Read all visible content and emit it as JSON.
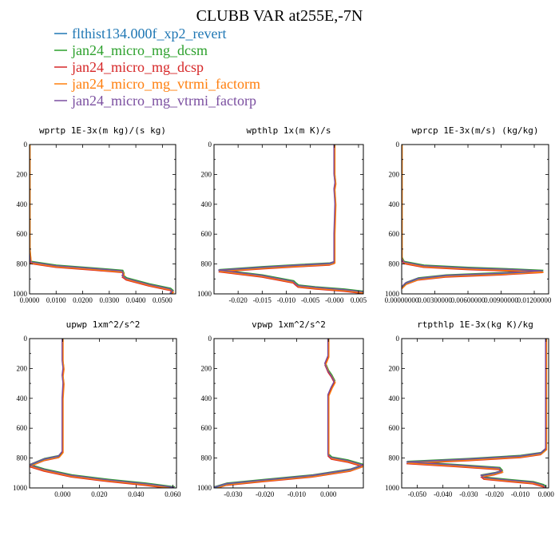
{
  "figure": {
    "title": "CLUBB VAR at255E,-7N"
  },
  "colors": {
    "background": "#ffffff",
    "axis": "#000000"
  },
  "legend": [
    {
      "label": "flthist134.000f_xp2_revert",
      "color": "#1f77b4"
    },
    {
      "label": "jan24_micro_mg_dcsm",
      "color": "#2ca02c"
    },
    {
      "label": "jan24_micro_mg_dcsp",
      "color": "#d62728"
    },
    {
      "label": "jan24_micro_mg_vtrmi_factorm",
      "color": "#ff7f0e"
    },
    {
      "label": "jan24_micro_mg_vtrmi_factorp",
      "color": "#7b4fa0"
    }
  ],
  "chart_data": [
    {
      "type": "line",
      "title": "wprtp 1E-3x(m kg)/(s kg)",
      "xlim": [
        0,
        0.055
      ],
      "ylim": [
        0,
        1000
      ],
      "y_reversed": true,
      "xticks": [
        0,
        0.01,
        0.02,
        0.03,
        0.04,
        0.05
      ],
      "xtick_labels": [
        "0.0000",
        "0.0100",
        "0.0200",
        "0.0300",
        "0.0400",
        "0.0500"
      ],
      "yticks": [
        0,
        200,
        400,
        600,
        800,
        1000
      ],
      "ytick_labels": [
        "0",
        "200",
        "400",
        "600",
        "800",
        "1000"
      ],
      "series": [
        {
          "x": [
            0,
            0,
            0,
            0.0005,
            0.01,
            0.025,
            0.035,
            0.0355,
            0.035,
            0.0365,
            0.045,
            0.053,
            0.054,
            0.053
          ],
          "y": [
            0,
            300,
            700,
            790,
            815,
            835,
            850,
            870,
            880,
            900,
            940,
            970,
            985,
            1000
          ]
        }
      ]
    },
    {
      "type": "line",
      "title": "wpthlp 1x(m K)/s",
      "xlim": [
        -0.025,
        0.006
      ],
      "ylim": [
        0,
        1000
      ],
      "y_reversed": true,
      "xticks": [
        -0.02,
        -0.015,
        -0.01,
        -0.005,
        0
      ],
      "xtick_labels": [
        "-0.020",
        "-0.015",
        "-0.010",
        "-0.005",
        "-0.000"
      ],
      "extra_xtick_labels": [
        {
          "value": 0.005,
          "label": "0.005"
        }
      ],
      "yticks": [
        0,
        200,
        400,
        600,
        800,
        1000
      ],
      "ytick_labels": [
        "0",
        "200",
        "400",
        "600",
        "800",
        "1000"
      ],
      "series": [
        {
          "x": [
            0,
            0,
            0.0002,
            0,
            0.0002,
            0,
            0,
            -0.001,
            -0.007,
            -0.015,
            -0.024,
            -0.015,
            -0.0085,
            -0.008,
            -0.0075,
            -0.004,
            0.002,
            0.006
          ],
          "y": [
            0,
            200,
            260,
            300,
            400,
            600,
            790,
            800,
            810,
            825,
            845,
            880,
            920,
            935,
            948,
            960,
            975,
            990
          ]
        }
      ]
    },
    {
      "type": "line",
      "title": "wprcp 1E-3x(m/s) (kg/kg)",
      "xlim": [
        0,
        0.0133
      ],
      "ylim": [
        0,
        1000
      ],
      "y_reversed": true,
      "xticks": [
        0,
        0.003,
        0.006,
        0.009,
        0.012
      ],
      "xtick_labels": [
        "0.00000000",
        "0.00300000",
        "0.00600000",
        "0.00900000",
        "0.01200000"
      ],
      "yticks": [
        0,
        200,
        400,
        600,
        800,
        1000
      ],
      "ytick_labels": [
        "0",
        "200",
        "400",
        "600",
        "800",
        "1000"
      ],
      "series": [
        {
          "x": [
            0,
            0,
            0.0002,
            0.002,
            0.006,
            0.01,
            0.0128,
            0.009,
            0.004,
            0.0015,
            0.0004,
            0
          ],
          "y": [
            0,
            760,
            790,
            815,
            830,
            840,
            850,
            865,
            880,
            900,
            930,
            960
          ]
        }
      ]
    },
    {
      "type": "line",
      "title": "upwp 1xm^2/s^2",
      "xlim": [
        -0.018,
        0.062
      ],
      "ylim": [
        0,
        1000
      ],
      "y_reversed": true,
      "xticks": [
        0,
        0.02,
        0.04,
        0.06
      ],
      "xtick_labels": [
        "0.000",
        "0.020",
        "0.040",
        "0.060"
      ],
      "yticks": [
        0,
        200,
        400,
        600,
        800,
        1000
      ],
      "ytick_labels": [
        "0",
        "200",
        "400",
        "600",
        "800",
        "1000"
      ],
      "series": [
        {
          "x": [
            0,
            0,
            0.0005,
            0,
            0.0005,
            0,
            0,
            -0.002,
            -0.01,
            -0.018,
            -0.01,
            0.005,
            0.025,
            0.045,
            0.061
          ],
          "y": [
            0,
            150,
            200,
            250,
            300,
            400,
            760,
            790,
            810,
            850,
            880,
            920,
            950,
            975,
            1000
          ]
        }
      ]
    },
    {
      "type": "line",
      "title": "vpwp 1xm^2/s^2",
      "xlim": [
        -0.036,
        0.011
      ],
      "ylim": [
        0,
        1000
      ],
      "y_reversed": true,
      "xticks": [
        -0.03,
        -0.02,
        -0.01,
        0
      ],
      "xtick_labels": [
        "-0.030",
        "-0.020",
        "-0.010",
        "0.000"
      ],
      "yticks": [
        0,
        200,
        400,
        600,
        800,
        1000
      ],
      "ytick_labels": [
        "0",
        "200",
        "400",
        "600",
        "800",
        "1000"
      ],
      "series": [
        {
          "x": [
            0,
            0,
            -0.001,
            0,
            0.001,
            0.002,
            0.001,
            0,
            0,
            0.001,
            0.006,
            0.011,
            0.007,
            -0.005,
            -0.02,
            -0.032,
            -0.036
          ],
          "y": [
            0,
            120,
            170,
            220,
            250,
            290,
            330,
            380,
            780,
            800,
            820,
            850,
            880,
            920,
            950,
            975,
            1000
          ]
        }
      ]
    },
    {
      "type": "line",
      "title": "rtpthlp 1E-3x(kg K)/kg",
      "xlim": [
        -0.056,
        0.001
      ],
      "ylim": [
        0,
        1000
      ],
      "y_reversed": true,
      "xticks": [
        -0.05,
        -0.04,
        -0.03,
        -0.02,
        -0.01,
        0
      ],
      "xtick_labels": [
        "-0.050",
        "-0.040",
        "-0.030",
        "-0.020",
        "-0.010",
        "0.000"
      ],
      "yticks": [
        0,
        200,
        400,
        600,
        800,
        1000
      ],
      "ytick_labels": [
        "0",
        "200",
        "400",
        "600",
        "800",
        "1000"
      ],
      "series": [
        {
          "x": [
            0,
            0,
            -0.002,
            -0.01,
            -0.03,
            -0.054,
            -0.035,
            -0.018,
            -0.017,
            -0.02,
            -0.025,
            -0.024,
            -0.015,
            -0.005,
            -0.001,
            0
          ],
          "y": [
            0,
            740,
            770,
            790,
            810,
            830,
            850,
            870,
            890,
            905,
            920,
            935,
            950,
            965,
            985,
            1000
          ]
        }
      ]
    }
  ]
}
